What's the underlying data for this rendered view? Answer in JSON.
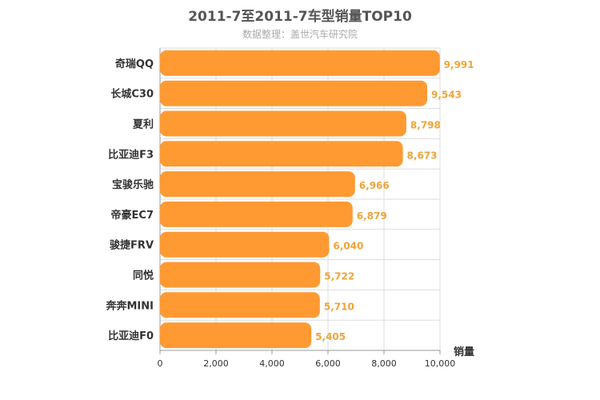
{
  "chart_data": {
    "type": "bar",
    "orientation": "horizontal",
    "title": "2011-7至2011-7车型销量TOP10",
    "subtitle": "数据整理：盖世汽车研究院",
    "xlabel": "销量",
    "xlim": [
      0,
      10000
    ],
    "ticks": [
      0,
      2000,
      4000,
      6000,
      8000,
      10000
    ],
    "tick_labels": [
      "0",
      "2,000",
      "4,000",
      "6,000",
      "8,000",
      "10,000"
    ],
    "grid": true,
    "bar_color": "#ff9a33",
    "label_color": "#f0a33a",
    "categories": [
      "奇瑞QQ",
      "长城C30",
      "夏利",
      "比亚迪F3",
      "宝骏乐驰",
      "帝豪EC7",
      "骏捷FRV",
      "同悦",
      "奔奔MINI",
      "比亚迪F0"
    ],
    "values": [
      9991,
      9543,
      8798,
      8673,
      6966,
      6879,
      6040,
      5722,
      5710,
      5405
    ],
    "value_labels": [
      "9,991",
      "9,543",
      "8,798",
      "8,673",
      "6,966",
      "6,879",
      "6,040",
      "5,722",
      "5,710",
      "5,405"
    ]
  }
}
